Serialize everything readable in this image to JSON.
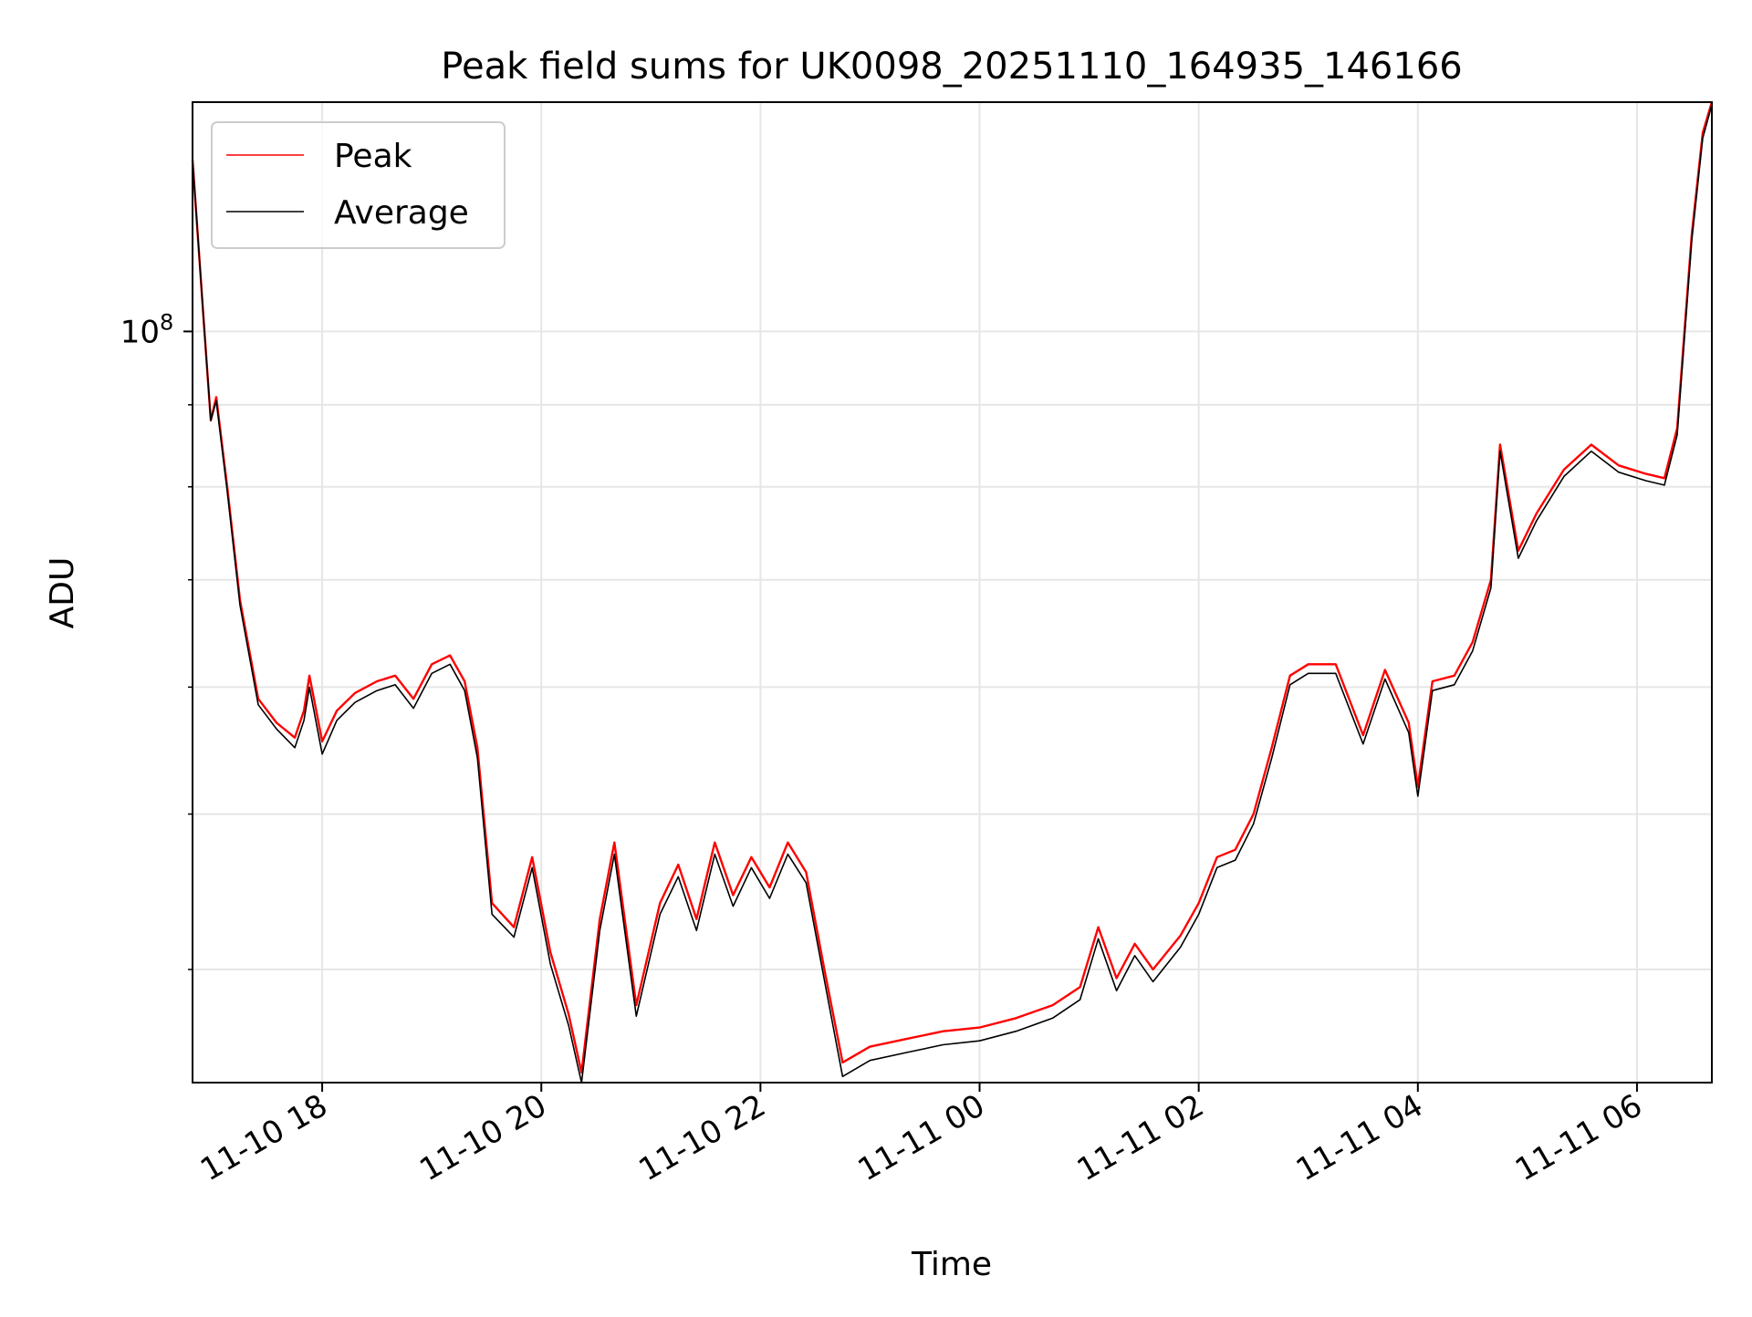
{
  "chart_data": {
    "type": "line",
    "title": "Peak field sums for UK0098_20251110_164935_146166",
    "xlabel": "Time",
    "ylabel": "ADU",
    "y_scale": "log",
    "ylim": [
      34000000,
      139000000
    ],
    "xlim": [
      "2025-11-10T16:49",
      "2025-11-11T06:41"
    ],
    "x_ticks": [
      {
        "t": "2025-11-10T18:00",
        "label": "11-10 18"
      },
      {
        "t": "2025-11-10T20:00",
        "label": "11-10 20"
      },
      {
        "t": "2025-11-10T22:00",
        "label": "11-10 22"
      },
      {
        "t": "2025-11-11T00:00",
        "label": "11-11 00"
      },
      {
        "t": "2025-11-11T02:00",
        "label": "11-11 02"
      },
      {
        "t": "2025-11-11T04:00",
        "label": "11-11 04"
      },
      {
        "t": "2025-11-11T06:00",
        "label": "11-11 06"
      }
    ],
    "y_major_ticks": [
      {
        "value": 100000000,
        "base": "10",
        "exp": "8"
      }
    ],
    "y_minor_ticks": [
      40000000,
      50000000,
      60000000,
      70000000,
      80000000,
      90000000,
      200000000
    ],
    "grid": true,
    "legend_position": "upper-left",
    "series": [
      {
        "name": "Peak",
        "color": "#ff0000",
        "points": [
          [
            "2025-11-10T16:49",
            128000000
          ],
          [
            "2025-11-10T16:55",
            102000000
          ],
          [
            "2025-11-10T16:59",
            88000000
          ],
          [
            "2025-11-10T17:02",
            91000000
          ],
          [
            "2025-11-10T17:08",
            80000000
          ],
          [
            "2025-11-10T17:15",
            68000000
          ],
          [
            "2025-11-10T17:25",
            59000000
          ],
          [
            "2025-11-10T17:35",
            57000000
          ],
          [
            "2025-11-10T17:45",
            55800000
          ],
          [
            "2025-11-10T17:50",
            58000000
          ],
          [
            "2025-11-10T17:53",
            61000000
          ],
          [
            "2025-11-10T18:00",
            55500000
          ],
          [
            "2025-11-10T18:08",
            58000000
          ],
          [
            "2025-11-10T18:18",
            59500000
          ],
          [
            "2025-11-10T18:30",
            60500000
          ],
          [
            "2025-11-10T18:40",
            61000000
          ],
          [
            "2025-11-10T18:50",
            59000000
          ],
          [
            "2025-11-10T19:00",
            62000000
          ],
          [
            "2025-11-10T19:10",
            62800000
          ],
          [
            "2025-11-10T19:18",
            60500000
          ],
          [
            "2025-11-10T19:25",
            55000000
          ],
          [
            "2025-11-10T19:33",
            44000000
          ],
          [
            "2025-11-10T19:45",
            42500000
          ],
          [
            "2025-11-10T19:55",
            47000000
          ],
          [
            "2025-11-10T20:05",
            41000000
          ],
          [
            "2025-11-10T20:15",
            37500000
          ],
          [
            "2025-11-10T20:22",
            34500000
          ],
          [
            "2025-11-10T20:32",
            43000000
          ],
          [
            "2025-11-10T20:40",
            48000000
          ],
          [
            "2025-11-10T20:52",
            38000000
          ],
          [
            "2025-11-10T21:05",
            44000000
          ],
          [
            "2025-11-10T21:15",
            46500000
          ],
          [
            "2025-11-10T21:25",
            43000000
          ],
          [
            "2025-11-10T21:35",
            48000000
          ],
          [
            "2025-11-10T21:45",
            44500000
          ],
          [
            "2025-11-10T21:55",
            47000000
          ],
          [
            "2025-11-10T22:05",
            45000000
          ],
          [
            "2025-11-10T22:15",
            48000000
          ],
          [
            "2025-11-10T22:25",
            46000000
          ],
          [
            "2025-11-10T22:35",
            40000000
          ],
          [
            "2025-11-10T22:45",
            35000000
          ],
          [
            "2025-11-10T23:00",
            35800000
          ],
          [
            "2025-11-10T23:20",
            36200000
          ],
          [
            "2025-11-10T23:40",
            36600000
          ],
          [
            "2025-11-11T00:00",
            36800000
          ],
          [
            "2025-11-11T00:20",
            37300000
          ],
          [
            "2025-11-11T00:40",
            38000000
          ],
          [
            "2025-11-11T00:55",
            39000000
          ],
          [
            "2025-11-11T01:05",
            42500000
          ],
          [
            "2025-11-11T01:15",
            39500000
          ],
          [
            "2025-11-11T01:25",
            41500000
          ],
          [
            "2025-11-11T01:35",
            40000000
          ],
          [
            "2025-11-11T01:50",
            42000000
          ],
          [
            "2025-11-11T02:00",
            44000000
          ],
          [
            "2025-11-11T02:10",
            47000000
          ],
          [
            "2025-11-11T02:20",
            47500000
          ],
          [
            "2025-11-11T02:30",
            50000000
          ],
          [
            "2025-11-11T02:40",
            55000000
          ],
          [
            "2025-11-11T02:50",
            61000000
          ],
          [
            "2025-11-11T03:00",
            62000000
          ],
          [
            "2025-11-11T03:15",
            62000000
          ],
          [
            "2025-11-11T03:30",
            56000000
          ],
          [
            "2025-11-11T03:42",
            61500000
          ],
          [
            "2025-11-11T03:55",
            57000000
          ],
          [
            "2025-11-11T04:00",
            52000000
          ],
          [
            "2025-11-11T04:08",
            60500000
          ],
          [
            "2025-11-11T04:20",
            61000000
          ],
          [
            "2025-11-11T04:30",
            64000000
          ],
          [
            "2025-11-11T04:40",
            70000000
          ],
          [
            "2025-11-11T04:45",
            85000000
          ],
          [
            "2025-11-11T04:55",
            73000000
          ],
          [
            "2025-11-11T05:05",
            77000000
          ],
          [
            "2025-11-11T05:20",
            82000000
          ],
          [
            "2025-11-11T05:35",
            85000000
          ],
          [
            "2025-11-11T05:50",
            82500000
          ],
          [
            "2025-11-11T06:05",
            81500000
          ],
          [
            "2025-11-11T06:15",
            81000000
          ],
          [
            "2025-11-11T06:22",
            87000000
          ],
          [
            "2025-11-11T06:30",
            115000000
          ],
          [
            "2025-11-11T06:36",
            133000000
          ],
          [
            "2025-11-11T06:41",
            139000000
          ]
        ]
      },
      {
        "name": "Average",
        "color": "#000000",
        "points": [
          [
            "2025-11-10T16:49",
            128000000
          ],
          [
            "2025-11-10T16:55",
            102000000
          ],
          [
            "2025-11-10T16:59",
            88000000
          ],
          [
            "2025-11-10T17:02",
            90500000
          ],
          [
            "2025-11-10T17:08",
            79500000
          ],
          [
            "2025-11-10T17:15",
            67500000
          ],
          [
            "2025-11-10T17:25",
            58500000
          ],
          [
            "2025-11-10T17:35",
            56500000
          ],
          [
            "2025-11-10T17:45",
            55000000
          ],
          [
            "2025-11-10T17:50",
            57200000
          ],
          [
            "2025-11-10T17:53",
            60000000
          ],
          [
            "2025-11-10T18:00",
            54500000
          ],
          [
            "2025-11-10T18:08",
            57200000
          ],
          [
            "2025-11-10T18:18",
            58700000
          ],
          [
            "2025-11-10T18:30",
            59700000
          ],
          [
            "2025-11-10T18:40",
            60200000
          ],
          [
            "2025-11-10T18:50",
            58200000
          ],
          [
            "2025-11-10T19:00",
            61200000
          ],
          [
            "2025-11-10T19:10",
            62000000
          ],
          [
            "2025-11-10T19:18",
            59700000
          ],
          [
            "2025-11-10T19:25",
            54200000
          ],
          [
            "2025-11-10T19:33",
            43300000
          ],
          [
            "2025-11-10T19:45",
            41900000
          ],
          [
            "2025-11-10T19:55",
            46300000
          ],
          [
            "2025-11-10T20:05",
            40300000
          ],
          [
            "2025-11-10T20:15",
            36900000
          ],
          [
            "2025-11-10T20:22",
            34000000
          ],
          [
            "2025-11-10T20:32",
            42300000
          ],
          [
            "2025-11-10T20:40",
            47200000
          ],
          [
            "2025-11-10T20:52",
            37400000
          ],
          [
            "2025-11-10T21:05",
            43300000
          ],
          [
            "2025-11-10T21:15",
            45700000
          ],
          [
            "2025-11-10T21:25",
            42300000
          ],
          [
            "2025-11-10T21:35",
            47200000
          ],
          [
            "2025-11-10T21:45",
            43800000
          ],
          [
            "2025-11-10T21:55",
            46300000
          ],
          [
            "2025-11-10T22:05",
            44300000
          ],
          [
            "2025-11-10T22:15",
            47200000
          ],
          [
            "2025-11-10T22:25",
            45300000
          ],
          [
            "2025-11-10T22:35",
            39400000
          ],
          [
            "2025-11-10T22:45",
            34300000
          ],
          [
            "2025-11-10T23:00",
            35100000
          ],
          [
            "2025-11-10T23:20",
            35500000
          ],
          [
            "2025-11-10T23:40",
            35900000
          ],
          [
            "2025-11-11T00:00",
            36100000
          ],
          [
            "2025-11-11T00:20",
            36600000
          ],
          [
            "2025-11-11T00:40",
            37300000
          ],
          [
            "2025-11-11T00:55",
            38300000
          ],
          [
            "2025-11-11T01:05",
            41800000
          ],
          [
            "2025-11-11T01:15",
            38800000
          ],
          [
            "2025-11-11T01:25",
            40800000
          ],
          [
            "2025-11-11T01:35",
            39300000
          ],
          [
            "2025-11-11T01:50",
            41300000
          ],
          [
            "2025-11-11T02:00",
            43300000
          ],
          [
            "2025-11-11T02:10",
            46300000
          ],
          [
            "2025-11-11T02:20",
            46800000
          ],
          [
            "2025-11-11T02:30",
            49300000
          ],
          [
            "2025-11-11T02:40",
            54200000
          ],
          [
            "2025-11-11T02:50",
            60200000
          ],
          [
            "2025-11-11T03:00",
            61200000
          ],
          [
            "2025-11-11T03:15",
            61200000
          ],
          [
            "2025-11-11T03:30",
            55300000
          ],
          [
            "2025-11-11T03:42",
            60700000
          ],
          [
            "2025-11-11T03:55",
            56200000
          ],
          [
            "2025-11-11T04:00",
            51300000
          ],
          [
            "2025-11-11T04:08",
            59700000
          ],
          [
            "2025-11-11T04:20",
            60200000
          ],
          [
            "2025-11-11T04:30",
            63200000
          ],
          [
            "2025-11-11T04:40",
            69200000
          ],
          [
            "2025-11-11T04:45",
            84200000
          ],
          [
            "2025-11-11T04:55",
            72200000
          ],
          [
            "2025-11-11T05:05",
            76200000
          ],
          [
            "2025-11-11T05:20",
            81200000
          ],
          [
            "2025-11-11T05:35",
            84200000
          ],
          [
            "2025-11-11T05:50",
            81700000
          ],
          [
            "2025-11-11T06:05",
            80700000
          ],
          [
            "2025-11-11T06:15",
            80200000
          ],
          [
            "2025-11-11T06:22",
            86200000
          ],
          [
            "2025-11-11T06:30",
            114000000
          ],
          [
            "2025-11-11T06:36",
            132000000
          ],
          [
            "2025-11-11T06:41",
            138500000
          ]
        ]
      }
    ]
  }
}
